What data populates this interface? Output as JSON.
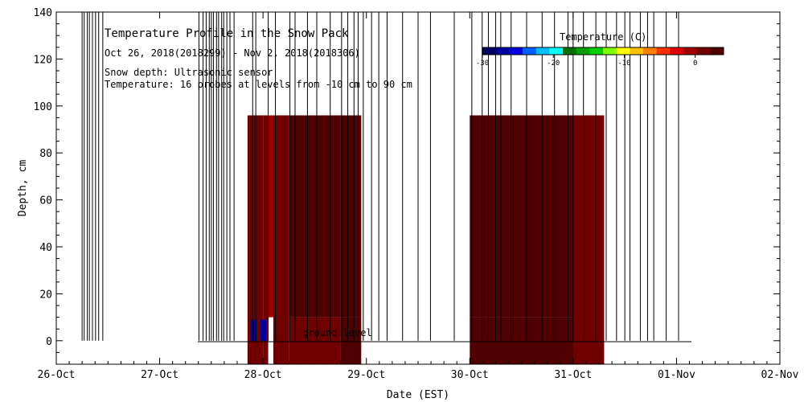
{
  "chart_data": {
    "type": "heatmap",
    "title": "Temperature Profile in the Snow Pack",
    "subtitle": "Oct 26, 2018(2018299) - Nov  2, 2018(2018306)",
    "annotation_depth": "Snow depth: Ultrasonic sensor",
    "annotation_temp": "Temperature: 16 probes at levels from -10 cm to 90 cm",
    "ground_label": "ground level",
    "xlabel": "Date (EST)",
    "ylabel": "Depth, cm",
    "x_ticks": [
      "26-Oct",
      "27-Oct",
      "28-Oct",
      "29-Oct",
      "30-Oct",
      "31-Oct",
      "01-Nov",
      "02-Nov"
    ],
    "xlim_days": [
      0,
      7
    ],
    "ylim": [
      -10,
      140
    ],
    "y_ticks": [
      0,
      20,
      40,
      60,
      80,
      100,
      120,
      140
    ],
    "colorbar": {
      "title": "Temperature (C)",
      "range": [
        -30,
        4
      ],
      "ticks": [
        -30,
        -20,
        -10,
        0
      ],
      "colors": [
        "#000060",
        "#0000a0",
        "#0000e0",
        "#0060ff",
        "#00c0ff",
        "#00ffff",
        "#007000",
        "#00a000",
        "#00d000",
        "#80ff00",
        "#ffff00",
        "#ffc000",
        "#ff8000",
        "#ff3000",
        "#e00000",
        "#a00000",
        "#700000",
        "#500000"
      ]
    },
    "temperature_blocks": [
      {
        "day": [
          1.85,
          2.0
        ],
        "depth": [
          -10,
          96
        ],
        "temp": 1.0
      },
      {
        "day": [
          2.0,
          2.05
        ],
        "depth": [
          -10,
          96
        ],
        "temp": 1.0
      },
      {
        "day": [
          2.05,
          2.1
        ],
        "depth": [
          10,
          96
        ],
        "temp": -1.5
      },
      {
        "day": [
          2.1,
          2.25
        ],
        "depth": [
          -10,
          96
        ],
        "temp": 1.0
      },
      {
        "day": [
          2.25,
          2.75
        ],
        "depth": [
          10,
          96
        ],
        "temp": 3.5
      },
      {
        "day": [
          2.25,
          2.75
        ],
        "depth": [
          -10,
          10
        ],
        "temp": 1.5
      },
      {
        "day": [
          2.75,
          2.95
        ],
        "depth": [
          10,
          96
        ],
        "temp": 3.5
      },
      {
        "day": [
          2.75,
          2.95
        ],
        "depth": [
          -10,
          10
        ],
        "temp": 2.5
      },
      {
        "day": [
          4.0,
          5.15
        ],
        "depth": [
          10,
          96
        ],
        "temp": 3.5
      },
      {
        "day": [
          4.0,
          5.15
        ],
        "depth": [
          -10,
          10
        ],
        "temp": 2.5
      },
      {
        "day": [
          5.0,
          5.2
        ],
        "depth": [
          10,
          96
        ],
        "temp": 0.5
      },
      {
        "day": [
          5.0,
          5.2
        ],
        "depth": [
          -10,
          10
        ],
        "temp": 1.0
      },
      {
        "day": [
          5.15,
          5.3
        ],
        "depth": [
          -10,
          96
        ],
        "temp": 1.5
      }
    ],
    "cold_cells": [
      {
        "day": [
          1.88,
          1.94
        ],
        "depth": [
          0,
          9
        ],
        "temp": -28
      },
      {
        "day": [
          1.97,
          2.03
        ],
        "depth": [
          0,
          9
        ],
        "temp": -28
      }
    ],
    "snow_depth_spikes_days": [
      0.25,
      0.27,
      0.3,
      0.32,
      0.35,
      0.38,
      0.41,
      0.45,
      1.38,
      1.42,
      1.45,
      1.48,
      1.5,
      1.52,
      1.55,
      1.57,
      1.6,
      1.62,
      1.65,
      1.68,
      1.72,
      1.9,
      1.93,
      2.05,
      2.12,
      2.26,
      2.31,
      2.43,
      2.52,
      2.65,
      2.76,
      2.82,
      2.88,
      2.92,
      2.97,
      3.05,
      3.12,
      3.2,
      3.35,
      3.5,
      3.62,
      3.85,
      4.02,
      4.12,
      4.18,
      4.25,
      4.3,
      4.4,
      4.55,
      4.7,
      4.82,
      4.95,
      5.0,
      5.1,
      5.22,
      5.32,
      5.42,
      5.5,
      5.55,
      5.65,
      5.72,
      5.78,
      5.9,
      6.02
    ]
  }
}
